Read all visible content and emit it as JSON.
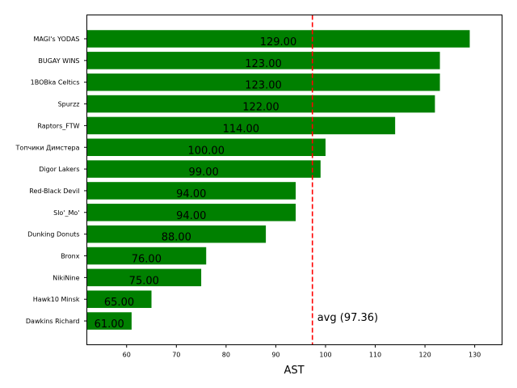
{
  "chart_data": {
    "type": "bar",
    "orientation": "horizontal",
    "categories": [
      "MAGI's YODAS",
      "BUGAY WINS",
      "1BOBka Celtics",
      "Spurzz",
      "Raptors_FTW",
      "Топчики Димстера",
      "Digor Lakers",
      "Red-Black Devil",
      "Slo'_Mo'",
      "Dunking Donuts",
      "Bronx",
      "NikiNine",
      "Hawk10 Minsk",
      "Dawkins Richard"
    ],
    "values": [
      129,
      123,
      123,
      122,
      114,
      100,
      99,
      94,
      94,
      88,
      76,
      75,
      65,
      61
    ],
    "value_labels": [
      "129.00",
      "123.00",
      "123.00",
      "122.00",
      "114.00",
      "100.00",
      "99.00",
      "94.00",
      "94.00",
      "88.00",
      "76.00",
      "75.00",
      "65.00",
      "61.00"
    ],
    "xlabel": "AST",
    "ylabel": "",
    "title": "",
    "xlim": [
      52,
      135.5
    ],
    "xticks": [
      60,
      70,
      80,
      90,
      100,
      110,
      120,
      130
    ],
    "average": 97.36,
    "average_label": "avg (97.36)",
    "bar_color": "#008000",
    "average_line_color": "#ff0000",
    "grid": false,
    "legend": "none"
  }
}
